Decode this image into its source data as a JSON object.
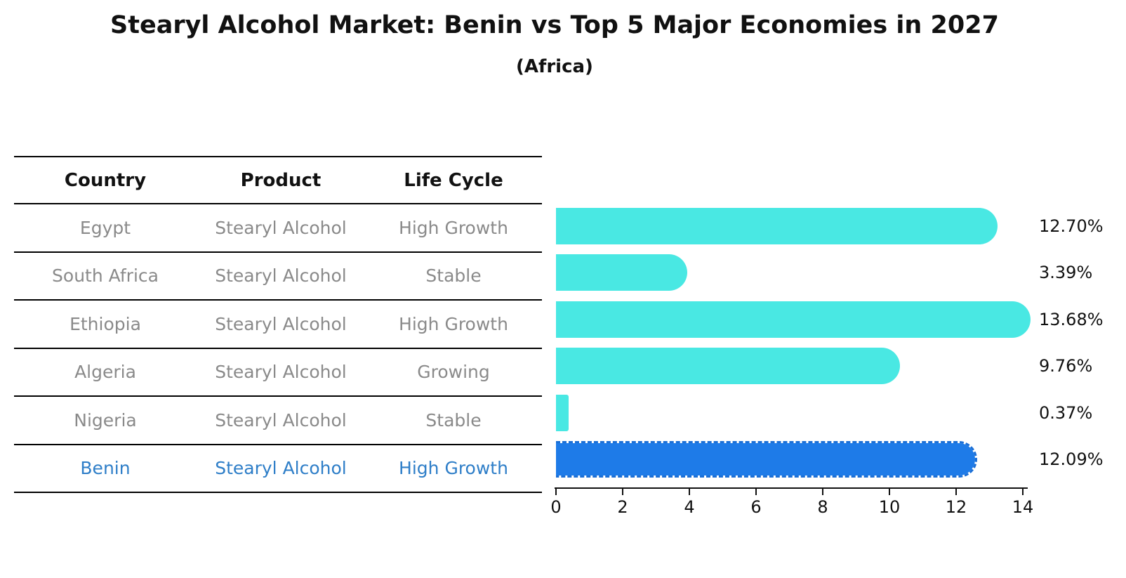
{
  "title": "Stearyl Alcohol Market: Benin vs Top 5 Major Economies in 2027",
  "subtitle": "(Africa)",
  "table": {
    "headers": [
      "Country",
      "Product",
      "Life Cycle"
    ],
    "rows": [
      {
        "country": "Egypt",
        "product": "Stearyl Alcohol",
        "life_cycle": "High Growth"
      },
      {
        "country": "South Africa",
        "product": "Stearyl Alcohol",
        "life_cycle": "Stable"
      },
      {
        "country": "Ethiopia",
        "product": "Stearyl Alcohol",
        "life_cycle": "High Growth"
      },
      {
        "country": "Algeria",
        "product": "Stearyl Alcohol",
        "life_cycle": "Growing"
      },
      {
        "country": "Nigeria",
        "product": "Stearyl Alcohol",
        "life_cycle": "Stable"
      },
      {
        "country": "Benin",
        "product": "Stearyl Alcohol",
        "life_cycle": "High Growth"
      }
    ]
  },
  "chart_data": {
    "type": "bar",
    "orientation": "horizontal",
    "title": "Stearyl Alcohol Market: Benin vs Top 5 Major Economies in 2027",
    "subtitle": "(Africa)",
    "categories": [
      "Egypt",
      "South Africa",
      "Ethiopia",
      "Algeria",
      "Nigeria",
      "Benin"
    ],
    "values": [
      12.7,
      3.39,
      13.68,
      9.76,
      0.37,
      12.09
    ],
    "labels": [
      "12.70%",
      "3.39%",
      "13.68%",
      "9.76%",
      "0.37%",
      "12.09%"
    ],
    "x_ticks": [
      "0",
      "2",
      "4",
      "6",
      "8",
      "10",
      "12",
      "14"
    ],
    "xlim": [
      0,
      14
    ],
    "highlight_index": 5,
    "legend": "none",
    "grid": "off"
  },
  "colors": {
    "bar": "#49e8e3",
    "hl": "#1e7be8",
    "hl-edge": "#1b6fd6",
    "accent-text": "#2e7ec8",
    "muted": "#8a8a8a"
  }
}
